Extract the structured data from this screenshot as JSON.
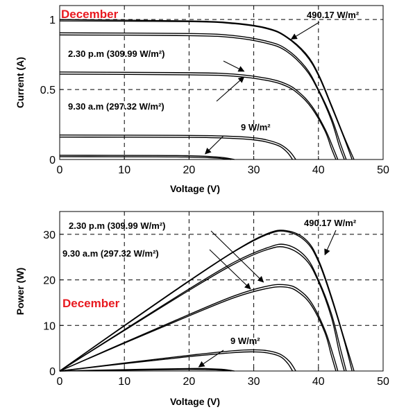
{
  "colors": {
    "axis": "#000000",
    "curve": "#000000",
    "grid": "#000000",
    "month_label": "#e8191f"
  },
  "chart_data": [
    {
      "type": "line",
      "title": "",
      "xlabel": "Voltage (V)",
      "ylabel": "Current (A)",
      "xlim": [
        0,
        50
      ],
      "ylim": [
        0,
        1.1
      ],
      "xticks": [
        0,
        10,
        20,
        30,
        40,
        50
      ],
      "yticks": [
        0,
        0.5,
        1
      ],
      "ytick_labels": [
        "0",
        "0.5",
        "1"
      ],
      "grid": "dashed",
      "month_label": "December",
      "annotations": [
        {
          "text": "490.17 W/m²",
          "arrow_to": [
            35.8,
            0.86
          ]
        },
        {
          "text": "2.30 p.m (309.99 W/m²)",
          "arrow_to": [
            28.5,
            0.63
          ]
        },
        {
          "text": "9.30 a.m (297.32 W/m²)",
          "arrow_to": [
            28.5,
            0.59
          ]
        },
        {
          "text": "9 W/m²",
          "arrow_to": [
            22.5,
            0.04
          ]
        }
      ],
      "series": [
        {
          "isc": 1.0,
          "voc": 45.5,
          "points": [
            [
              0,
              1.0
            ],
            [
              20,
              0.99
            ],
            [
              27,
              0.975
            ],
            [
              32,
              0.94
            ],
            [
              35,
              0.88
            ],
            [
              38,
              0.76
            ],
            [
              40,
              0.61
            ],
            [
              42,
              0.39
            ],
            [
              44,
              0.16
            ],
            [
              45.5,
              0.0
            ]
          ]
        },
        {
          "isc": 0.99,
          "voc": 45.2,
          "points": [
            [
              0,
              0.99
            ],
            [
              20,
              0.985
            ],
            [
              27,
              0.97
            ],
            [
              32,
              0.935
            ],
            [
              35,
              0.875
            ],
            [
              38,
              0.75
            ],
            [
              40,
              0.6
            ],
            [
              42,
              0.38
            ],
            [
              44,
              0.15
            ],
            [
              45.2,
              0.0
            ]
          ]
        },
        {
          "isc": 0.905,
          "voc": 44.3,
          "points": [
            [
              0,
              0.905
            ],
            [
              20,
              0.9
            ],
            [
              27,
              0.885
            ],
            [
              32,
              0.845
            ],
            [
              35,
              0.79
            ],
            [
              38,
              0.66
            ],
            [
              40,
              0.5
            ],
            [
              42,
              0.3
            ],
            [
              43.5,
              0.1
            ],
            [
              44.3,
              0.0
            ]
          ]
        },
        {
          "isc": 0.89,
          "voc": 44.0,
          "points": [
            [
              0,
              0.89
            ],
            [
              20,
              0.885
            ],
            [
              27,
              0.87
            ],
            [
              32,
              0.83
            ],
            [
              35,
              0.775
            ],
            [
              38,
              0.645
            ],
            [
              40,
              0.49
            ],
            [
              42,
              0.28
            ],
            [
              43.2,
              0.1
            ],
            [
              44.0,
              0.0
            ]
          ]
        },
        {
          "isc": 0.625,
          "voc": 43.0,
          "points": [
            [
              0,
              0.625
            ],
            [
              20,
              0.62
            ],
            [
              27,
              0.61
            ],
            [
              32,
              0.58
            ],
            [
              35,
              0.54
            ],
            [
              37,
              0.48
            ],
            [
              39,
              0.38
            ],
            [
              41,
              0.22
            ],
            [
              42.3,
              0.08
            ],
            [
              43.0,
              0.0
            ]
          ]
        },
        {
          "isc": 0.61,
          "voc": 42.7,
          "points": [
            [
              0,
              0.61
            ],
            [
              20,
              0.605
            ],
            [
              27,
              0.595
            ],
            [
              32,
              0.565
            ],
            [
              35,
              0.525
            ],
            [
              37,
              0.465
            ],
            [
              39,
              0.365
            ],
            [
              41,
              0.205
            ],
            [
              42.0,
              0.08
            ],
            [
              42.7,
              0.0
            ]
          ]
        },
        {
          "isc": 0.175,
          "voc": 36.5,
          "points": [
            [
              0,
              0.175
            ],
            [
              20,
              0.172
            ],
            [
              27,
              0.165
            ],
            [
              30,
              0.155
            ],
            [
              32,
              0.14
            ],
            [
              34,
              0.11
            ],
            [
              35.5,
              0.06
            ],
            [
              36.5,
              0.0
            ]
          ]
        },
        {
          "isc": 0.16,
          "voc": 36.0,
          "points": [
            [
              0,
              0.16
            ],
            [
              20,
              0.158
            ],
            [
              27,
              0.15
            ],
            [
              30,
              0.14
            ],
            [
              32,
              0.125
            ],
            [
              34,
              0.095
            ],
            [
              35.2,
              0.05
            ],
            [
              36.0,
              0.0
            ]
          ]
        },
        {
          "isc": 0.03,
          "voc": 27.0,
          "points": [
            [
              0,
              0.03
            ],
            [
              15,
              0.029
            ],
            [
              20,
              0.027
            ],
            [
              23,
              0.022
            ],
            [
              25,
              0.015
            ],
            [
              26.2,
              0.007
            ],
            [
              27.0,
              0.0
            ]
          ]
        },
        {
          "isc": 0.02,
          "voc": 26.5,
          "points": [
            [
              0,
              0.02
            ],
            [
              15,
              0.019
            ],
            [
              20,
              0.017
            ],
            [
              23,
              0.013
            ],
            [
              25,
              0.008
            ],
            [
              26.5,
              0.0
            ]
          ]
        }
      ]
    },
    {
      "type": "line",
      "title": "",
      "xlabel": "Voltage (V)",
      "ylabel": "Power (W)",
      "xlim": [
        0,
        50
      ],
      "ylim": [
        0,
        35
      ],
      "xticks": [
        0,
        10,
        20,
        30,
        40,
        50
      ],
      "yticks": [
        0,
        10,
        20,
        30
      ],
      "ytick_labels": [
        "0",
        "10",
        "20",
        "30"
      ],
      "grid": "dashed",
      "month_label": "December",
      "annotations": [
        {
          "text": "2.30 p.m (309.99 W/m²)",
          "arrow_to": [
            31.5,
            19.5
          ]
        },
        {
          "text": "9.30 a.m (297.32 W/m²)",
          "arrow_to": [
            29.5,
            18.0
          ]
        },
        {
          "text": "490.17 W/m²",
          "arrow_to": [
            41.0,
            25.5
          ]
        },
        {
          "text": "9 W/m²",
          "arrow_to": [
            21.5,
            0.9
          ]
        }
      ],
      "series": [
        {
          "points": [
            [
              0,
              0
            ],
            [
              10,
              10.0
            ],
            [
              20,
              19.8
            ],
            [
              27,
              26.3
            ],
            [
              32,
              30.1
            ],
            [
              35,
              30.8
            ],
            [
              38,
              28.9
            ],
            [
              40,
              24.4
            ],
            [
              42,
              16.4
            ],
            [
              44,
              7.0
            ],
            [
              45.5,
              0.0
            ]
          ]
        },
        {
          "points": [
            [
              0,
              0
            ],
            [
              10,
              9.9
            ],
            [
              20,
              19.7
            ],
            [
              27,
              26.2
            ],
            [
              32,
              29.9
            ],
            [
              35,
              30.6
            ],
            [
              38,
              28.5
            ],
            [
              40,
              24.0
            ],
            [
              42,
              16.0
            ],
            [
              44,
              6.6
            ],
            [
              45.2,
              0.0
            ]
          ]
        },
        {
          "points": [
            [
              0,
              0
            ],
            [
              10,
              9.05
            ],
            [
              20,
              18.0
            ],
            [
              27,
              23.9
            ],
            [
              32,
              27.0
            ],
            [
              35,
              27.7
            ],
            [
              38,
              25.1
            ],
            [
              40,
              20.0
            ],
            [
              42,
              12.6
            ],
            [
              43.5,
              4.35
            ],
            [
              44.3,
              0.0
            ]
          ]
        },
        {
          "points": [
            [
              0,
              0
            ],
            [
              10,
              8.9
            ],
            [
              20,
              17.7
            ],
            [
              27,
              23.5
            ],
            [
              32,
              26.6
            ],
            [
              35,
              27.1
            ],
            [
              38,
              24.5
            ],
            [
              40,
              19.6
            ],
            [
              42,
              11.8
            ],
            [
              43.2,
              4.3
            ],
            [
              44.0,
              0.0
            ]
          ]
        },
        {
          "points": [
            [
              0,
              0
            ],
            [
              10,
              6.25
            ],
            [
              20,
              12.4
            ],
            [
              27,
              16.5
            ],
            [
              32,
              18.6
            ],
            [
              35,
              18.9
            ],
            [
              37,
              17.8
            ],
            [
              39,
              14.8
            ],
            [
              41,
              9.0
            ],
            [
              42.3,
              3.4
            ],
            [
              43.0,
              0.0
            ]
          ]
        },
        {
          "points": [
            [
              0,
              0
            ],
            [
              10,
              6.1
            ],
            [
              20,
              12.1
            ],
            [
              27,
              16.1
            ],
            [
              32,
              18.1
            ],
            [
              35,
              18.4
            ],
            [
              37,
              17.2
            ],
            [
              39,
              14.2
            ],
            [
              41,
              8.4
            ],
            [
              42.0,
              3.4
            ],
            [
              42.7,
              0.0
            ]
          ]
        },
        {
          "points": [
            [
              0,
              0
            ],
            [
              10,
              1.75
            ],
            [
              20,
              3.44
            ],
            [
              27,
              4.46
            ],
            [
              30,
              4.65
            ],
            [
              32,
              4.48
            ],
            [
              34,
              3.74
            ],
            [
              35.5,
              2.13
            ],
            [
              36.5,
              0.0
            ]
          ]
        },
        {
          "points": [
            [
              0,
              0
            ],
            [
              10,
              1.6
            ],
            [
              20,
              3.16
            ],
            [
              27,
              4.05
            ],
            [
              30,
              4.2
            ],
            [
              32,
              4.0
            ],
            [
              34,
              3.23
            ],
            [
              35.2,
              1.76
            ],
            [
              36.0,
              0.0
            ]
          ]
        },
        {
          "points": [
            [
              0,
              0
            ],
            [
              10,
              0.3
            ],
            [
              20,
              0.54
            ],
            [
              23,
              0.51
            ],
            [
              25,
              0.38
            ],
            [
              26.2,
              0.18
            ],
            [
              27.0,
              0.0
            ]
          ]
        },
        {
          "points": [
            [
              0,
              0
            ],
            [
              10,
              0.19
            ],
            [
              20,
              0.34
            ],
            [
              23,
              0.3
            ],
            [
              25,
              0.2
            ],
            [
              26.5,
              0.0
            ]
          ]
        }
      ]
    }
  ]
}
